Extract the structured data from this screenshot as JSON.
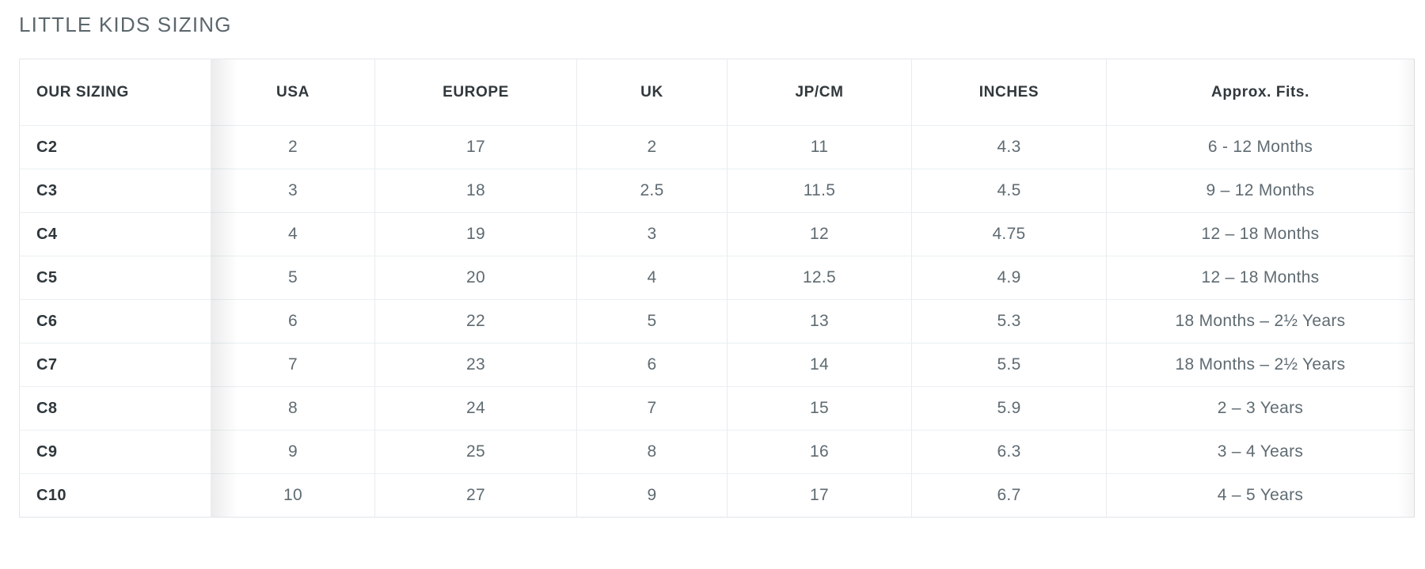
{
  "page": {
    "title": "LITTLE KIDS SIZING"
  },
  "table": {
    "columns": [
      "OUR SIZING",
      "USA",
      "EUROPE",
      "UK",
      "JP/CM",
      "INCHES",
      "Approx. Fits."
    ],
    "rows": [
      [
        "C2",
        "2",
        "17",
        "2",
        "11",
        "4.3",
        "6 - 12 Months"
      ],
      [
        "C3",
        "3",
        "18",
        "2.5",
        "11.5",
        "4.5",
        "9 – 12 Months"
      ],
      [
        "C4",
        "4",
        "19",
        "3",
        "12",
        "4.75",
        "12 – 18 Months"
      ],
      [
        "C5",
        "5",
        "20",
        "4",
        "12.5",
        "4.9",
        "12 – 18 Months"
      ],
      [
        "C6",
        "6",
        "22",
        "5",
        "13",
        "5.3",
        "18 Months – 2½ Years"
      ],
      [
        "C7",
        "7",
        "23",
        "6",
        "14",
        "5.5",
        "18 Months – 2½ Years"
      ],
      [
        "C8",
        "8",
        "24",
        "7",
        "15",
        "5.9",
        "2 – 3 Years"
      ],
      [
        "C9",
        "9",
        "25",
        "8",
        "16",
        "6.3",
        "3 – 4 Years"
      ],
      [
        "C10",
        "10",
        "27",
        "9",
        "17",
        "6.7",
        "4 – 5 Years"
      ]
    ]
  },
  "colors": {
    "title_text": "#5c676d",
    "header_text": "#31383c",
    "row_label_text": "#2f373c",
    "cell_text": "#5f6b72",
    "border_vertical": "#e8ebed",
    "border_horizontal": "#e9f0f2",
    "table_outline": "#e2e7ea"
  }
}
